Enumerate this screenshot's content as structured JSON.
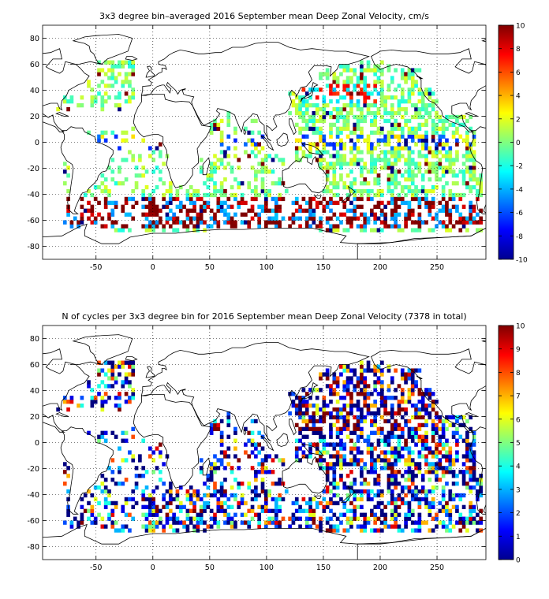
{
  "chart_data": [
    {
      "type": "heatmap",
      "title": "3x3 degree bin–averaged 2016 September mean Deep Zonal Velocity, cm/s",
      "xlim": [
        -97,
        293
      ],
      "ylim": [
        -90,
        90
      ],
      "xticks": [
        -50,
        0,
        50,
        100,
        150,
        200,
        250
      ],
      "yticks": [
        -80,
        -60,
        -40,
        -20,
        0,
        20,
        40,
        60,
        80
      ],
      "xtick_labels": [
        "-50",
        "0",
        "50",
        "100",
        "150",
        "200",
        "250"
      ],
      "ytick_labels": [
        "-80",
        "-60",
        "-40",
        "-20",
        "0",
        "20",
        "40",
        "60",
        "80"
      ],
      "bin_size_deg": 3,
      "grid": "dotted",
      "colormap": "jet",
      "colorbar": {
        "range": [
          -10,
          10
        ],
        "ticks": [
          -10,
          -8,
          -6,
          -4,
          -2,
          0,
          2,
          4,
          6,
          8,
          10
        ],
        "labels": [
          "-10",
          "-8",
          "-6",
          "-4",
          "-2",
          "0",
          "2",
          "4",
          "6",
          "8",
          "10"
        ],
        "position": "right"
      },
      "field": "velocity"
    },
    {
      "type": "heatmap",
      "title": "N of cycles per 3x3 degree bin for 2016 September mean Deep Zonal Velocity (7378 in total)",
      "xlim": [
        -97,
        293
      ],
      "ylim": [
        -90,
        90
      ],
      "xticks": [
        -50,
        0,
        50,
        100,
        150,
        200,
        250
      ],
      "yticks": [
        -80,
        -60,
        -40,
        -20,
        0,
        20,
        40,
        60,
        80
      ],
      "xtick_labels": [
        "-50",
        "0",
        "50",
        "100",
        "150",
        "200",
        "250"
      ],
      "ytick_labels": [
        "-80",
        "-60",
        "-40",
        "-20",
        "0",
        "20",
        "40",
        "60",
        "80"
      ],
      "bin_size_deg": 3,
      "grid": "dotted",
      "colormap": "jet",
      "colorbar": {
        "range": [
          0,
          10
        ],
        "ticks": [
          0,
          1,
          2,
          3,
          4,
          5,
          6,
          7,
          8,
          9,
          10
        ],
        "labels": [
          "0",
          "1",
          "2",
          "3",
          "4",
          "5",
          "6",
          "7",
          "8",
          "9",
          "10"
        ],
        "position": "right"
      },
      "field": "count"
    }
  ]
}
